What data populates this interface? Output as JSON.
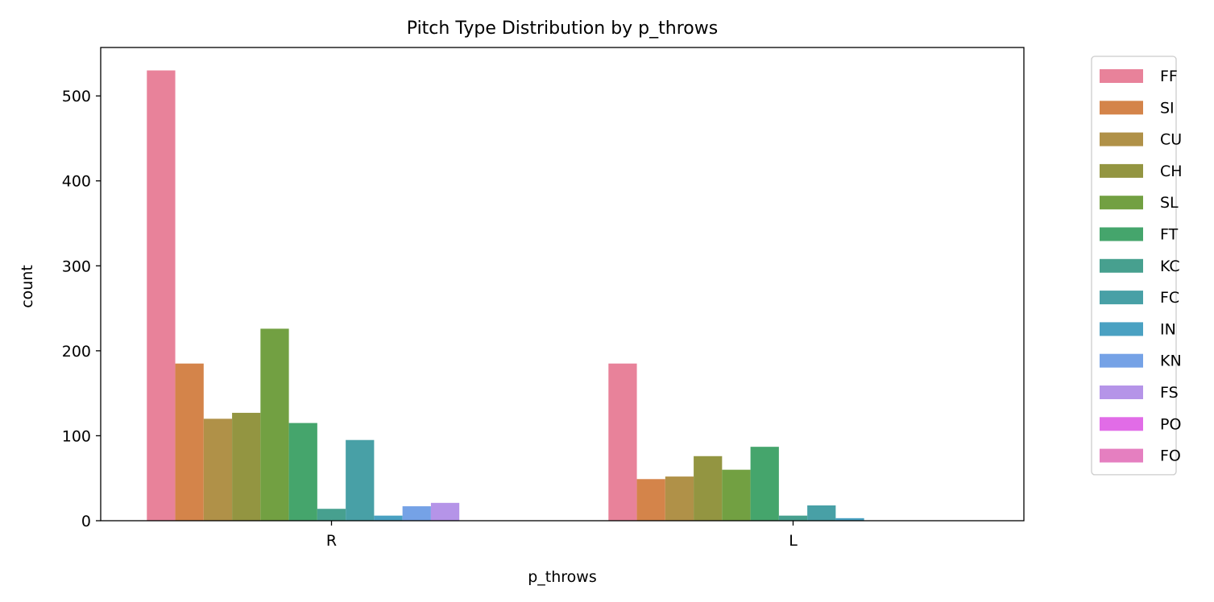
{
  "chart_data": {
    "type": "bar",
    "title": "Pitch Type Distribution by p_throws",
    "xlabel": "p_throws",
    "ylabel": "count",
    "categories": [
      "R",
      "L"
    ],
    "ylim": [
      0,
      557
    ],
    "yticks": [
      0,
      100,
      200,
      300,
      400,
      500
    ],
    "grid": false,
    "legend_position": "outside-right",
    "series": [
      {
        "name": "FF",
        "color": "#e8829a",
        "values": [
          530,
          185
        ]
      },
      {
        "name": "SI",
        "color": "#d4844a",
        "values": [
          185,
          49
        ]
      },
      {
        "name": "CU",
        "color": "#b09148",
        "values": [
          120,
          52
        ]
      },
      {
        "name": "CH",
        "color": "#939541",
        "values": [
          127,
          76
        ]
      },
      {
        "name": "SL",
        "color": "#72a042",
        "values": [
          226,
          60
        ]
      },
      {
        "name": "FT",
        "color": "#45a56c",
        "values": [
          115,
          87
        ]
      },
      {
        "name": "KC",
        "color": "#47a08f",
        "values": [
          14,
          6
        ]
      },
      {
        "name": "FC",
        "color": "#48a0a6",
        "values": [
          95,
          18
        ]
      },
      {
        "name": "IN",
        "color": "#4aa1c2",
        "values": [
          6,
          3
        ]
      },
      {
        "name": "KN",
        "color": "#75a2e6",
        "values": [
          17,
          0
        ]
      },
      {
        "name": "FS",
        "color": "#b594e8",
        "values": [
          21,
          0
        ]
      },
      {
        "name": "PO",
        "color": "#e16ce7",
        "values": [
          0,
          0
        ]
      },
      {
        "name": "FO",
        "color": "#e57fc0",
        "values": [
          0,
          0
        ]
      }
    ]
  }
}
